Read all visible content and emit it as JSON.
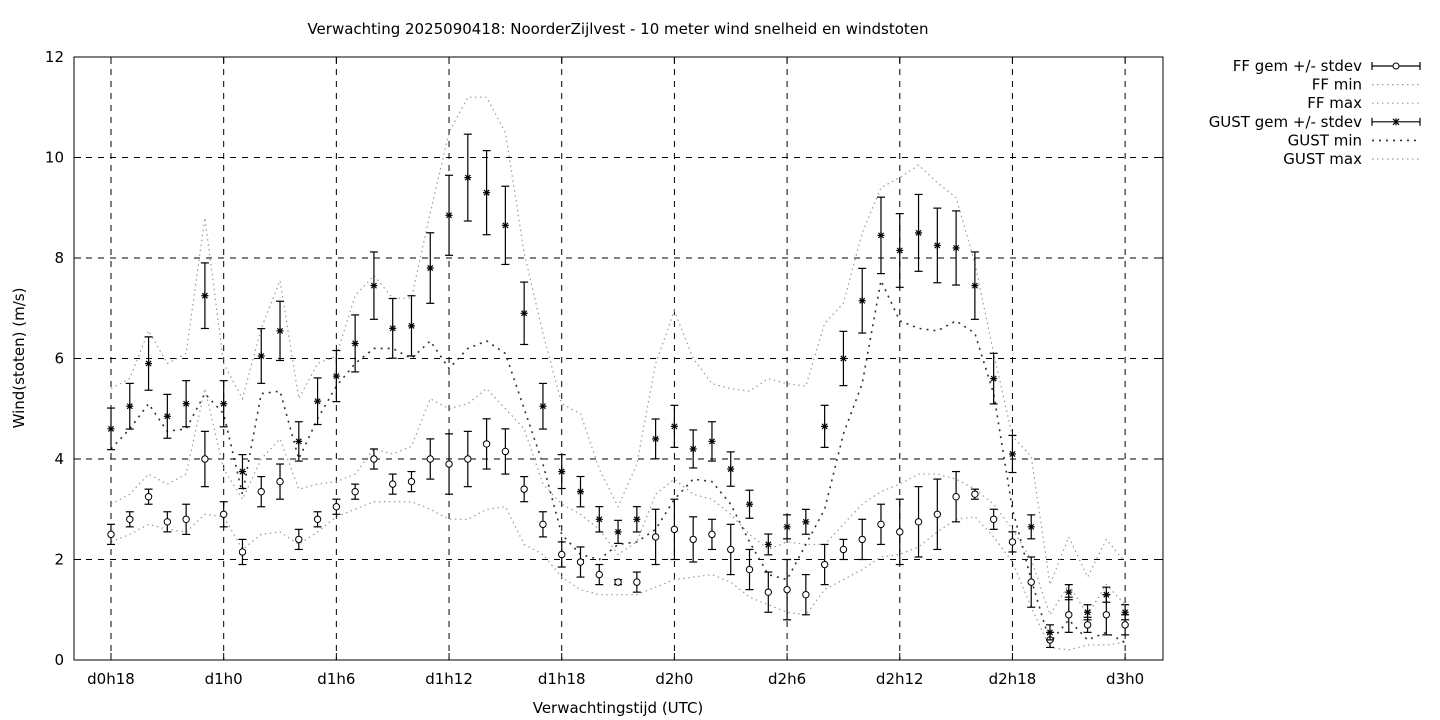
{
  "chart_data": {
    "type": "line",
    "title": "Verwachting 2025090418: NoorderZijlvest - 10 meter wind snelheid en windstoten",
    "xlabel": "Verwachtingstijd (UTC)",
    "ylabel": "Wind(stoten) (m/s)",
    "ylim": [
      0,
      12
    ],
    "yticks": [
      0,
      2,
      4,
      6,
      8,
      10,
      12
    ],
    "xlim": [
      -1.5,
      56
    ],
    "xticks": [
      {
        "x": 0,
        "label": "d0h18"
      },
      {
        "x": 6,
        "label": "d1h0"
      },
      {
        "x": 12,
        "label": "d1h6"
      },
      {
        "x": 18,
        "label": "d1h12"
      },
      {
        "x": 24,
        "label": "d1h18"
      },
      {
        "x": 30,
        "label": "d2h0"
      },
      {
        "x": 36,
        "label": "d2h6"
      },
      {
        "x": 42,
        "label": "d2h12"
      },
      {
        "x": 48,
        "label": "d2h18"
      },
      {
        "x": 54,
        "label": "d3h0"
      }
    ],
    "x": [
      0,
      1,
      2,
      3,
      4,
      5,
      6,
      7,
      8,
      9,
      10,
      11,
      12,
      13,
      14,
      15,
      16,
      17,
      18,
      19,
      20,
      21,
      22,
      23,
      24,
      25,
      26,
      27,
      28,
      29,
      30,
      31,
      32,
      33,
      34,
      35,
      36,
      37,
      38,
      39,
      40,
      41,
      42,
      43,
      44,
      45,
      46,
      47,
      48,
      49,
      50,
      51,
      52,
      53,
      54
    ],
    "grid": true,
    "legend_position": "top-right outside",
    "series": [
      {
        "name": "FF gem +/- stdev",
        "kind": "errorbar",
        "marker": "open-circle",
        "values": [
          2.5,
          2.8,
          3.25,
          2.75,
          2.8,
          4.0,
          2.9,
          2.15,
          3.35,
          3.55,
          2.4,
          2.8,
          3.05,
          3.35,
          4.0,
          3.5,
          3.55,
          4.0,
          3.9,
          4.0,
          4.3,
          4.15,
          3.4,
          2.7,
          2.1,
          1.95,
          1.7,
          1.55,
          1.55,
          2.45,
          2.6,
          2.4,
          2.5,
          2.2,
          1.8,
          1.35,
          1.4,
          1.3,
          1.9,
          2.2,
          2.4,
          2.7,
          2.55,
          2.75,
          2.9,
          3.25,
          3.3,
          2.8,
          2.35,
          1.55,
          0.4,
          0.9,
          0.7,
          0.9,
          0.7
        ],
        "stdev": [
          0.2,
          0.15,
          0.15,
          0.2,
          0.3,
          0.55,
          0.25,
          0.25,
          0.3,
          0.35,
          0.2,
          0.15,
          0.15,
          0.15,
          0.2,
          0.2,
          0.2,
          0.4,
          0.6,
          0.55,
          0.5,
          0.45,
          0.25,
          0.25,
          0.25,
          0.3,
          0.2,
          0.05,
          0.2,
          0.55,
          0.6,
          0.45,
          0.3,
          0.5,
          0.4,
          0.4,
          0.6,
          0.4,
          0.4,
          0.2,
          0.4,
          0.4,
          0.65,
          0.7,
          0.7,
          0.5,
          0.1,
          0.2,
          0.2,
          0.5,
          0.15,
          0.35,
          0.15,
          0.4,
          0.2
        ]
      },
      {
        "name": "FF min",
        "kind": "line",
        "style": "dotted",
        "values": [
          2.35,
          2.5,
          2.7,
          2.6,
          2.55,
          2.9,
          2.85,
          2.2,
          2.5,
          2.55,
          2.3,
          2.55,
          2.85,
          3.0,
          3.15,
          3.15,
          3.15,
          3.0,
          2.8,
          2.8,
          3.0,
          3.05,
          2.3,
          2.1,
          1.65,
          1.4,
          1.3,
          1.3,
          1.3,
          1.45,
          1.6,
          1.65,
          1.7,
          1.55,
          1.25,
          1.1,
          0.95,
          0.9,
          1.4,
          1.6,
          1.8,
          2.05,
          2.1,
          2.25,
          2.55,
          2.8,
          2.85,
          2.45,
          1.95,
          1.05,
          0.25,
          0.2,
          0.3,
          0.3,
          0.35
        ]
      },
      {
        "name": "FF max",
        "kind": "line",
        "style": "dotted",
        "values": [
          3.1,
          3.3,
          3.7,
          3.5,
          3.7,
          5.4,
          3.8,
          3.2,
          4.0,
          4.4,
          3.4,
          3.5,
          3.55,
          3.7,
          4.2,
          4.1,
          4.25,
          5.2,
          5.0,
          5.1,
          5.4,
          5.0,
          4.6,
          3.5,
          3.1,
          2.9,
          2.6,
          2.1,
          2.35,
          3.3,
          3.6,
          3.3,
          3.2,
          2.9,
          2.5,
          2.2,
          2.35,
          2.3,
          2.3,
          2.7,
          3.1,
          3.35,
          3.5,
          3.7,
          3.7,
          3.6,
          3.4,
          3.1,
          2.6,
          2.0,
          0.9,
          1.5,
          0.9,
          1.5,
          1.1
        ]
      },
      {
        "name": "GUST gem +/- stdev",
        "kind": "errorbar",
        "marker": "star",
        "values": [
          4.6,
          5.05,
          5.9,
          4.85,
          5.1,
          7.25,
          5.1,
          3.75,
          6.05,
          6.55,
          4.35,
          5.15,
          5.65,
          6.3,
          7.45,
          6.6,
          6.65,
          7.8,
          8.85,
          9.6,
          9.3,
          8.65,
          6.9,
          5.05,
          3.75,
          3.35,
          2.8,
          2.55,
          2.8,
          4.4,
          4.65,
          4.2,
          4.35,
          3.8,
          3.1,
          2.3,
          2.65,
          2.75,
          4.65,
          6.0,
          7.15,
          8.45,
          8.15,
          8.5,
          8.25,
          8.2,
          7.45,
          5.6,
          4.1,
          2.65,
          0.55,
          1.35,
          0.95,
          1.3,
          0.95
        ]
      },
      {
        "name": "GUST min",
        "kind": "line",
        "style": "dotted",
        "values": [
          4.2,
          4.6,
          5.1,
          4.55,
          4.6,
          5.3,
          4.9,
          3.3,
          5.3,
          5.35,
          4.0,
          4.8,
          5.45,
          5.9,
          6.2,
          6.2,
          6.0,
          6.35,
          5.8,
          6.2,
          6.35,
          6.1,
          5.0,
          3.9,
          2.5,
          2.1,
          2.0,
          2.3,
          2.35,
          2.6,
          3.2,
          3.6,
          3.55,
          3.1,
          2.35,
          1.7,
          1.6,
          2.3,
          3.0,
          4.5,
          5.5,
          7.55,
          6.75,
          6.6,
          6.55,
          6.75,
          6.5,
          5.3,
          3.0,
          1.6,
          0.35,
          0.8,
          0.4,
          0.55,
          0.35
        ]
      },
      {
        "name": "GUST max",
        "kind": "line",
        "style": "dotted",
        "values": [
          5.4,
          5.6,
          6.55,
          5.9,
          6.1,
          8.8,
          5.9,
          5.2,
          6.6,
          7.55,
          5.2,
          5.9,
          6.05,
          7.25,
          7.65,
          7.2,
          7.2,
          8.9,
          10.5,
          11.2,
          11.2,
          10.5,
          8.1,
          6.5,
          5.1,
          4.9,
          3.8,
          3.05,
          3.9,
          5.9,
          6.95,
          6.0,
          5.5,
          5.4,
          5.35,
          5.6,
          5.5,
          5.45,
          6.7,
          7.1,
          8.5,
          9.4,
          9.6,
          9.85,
          9.5,
          9.2,
          7.9,
          6.1,
          4.45,
          4.05,
          1.5,
          2.45,
          1.65,
          2.4,
          1.95
        ]
      }
    ]
  }
}
